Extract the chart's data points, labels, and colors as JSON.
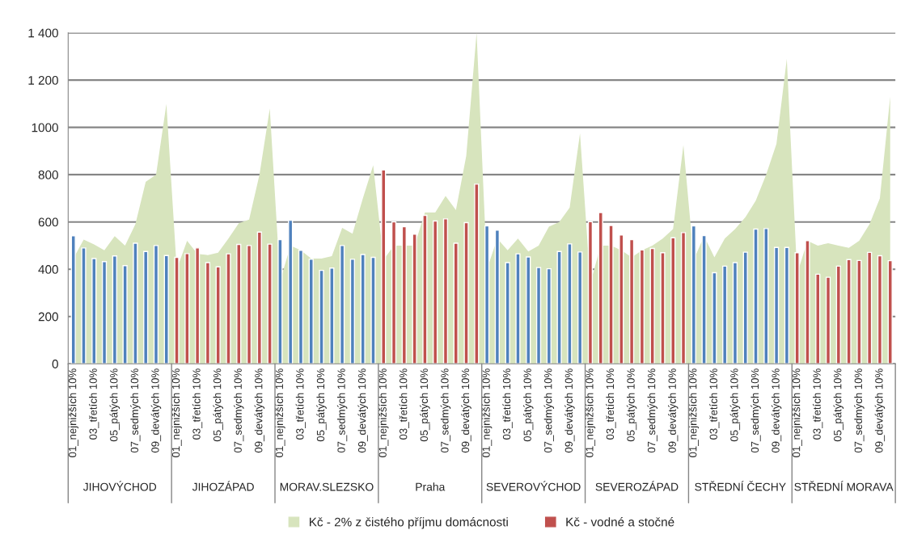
{
  "chart_data": {
    "type": "bar",
    "categories": [
      "01_nejnižších 10%",
      null,
      "03_třetích 10%",
      null,
      "05_pátých 10%",
      null,
      "07_sedmých 10%",
      null,
      "09_devátých 10%",
      null,
      "01_nejnižších 10%",
      null,
      "03_třetích 10%",
      null,
      "05_pátých 10%",
      null,
      "07_sedmých 10%",
      null,
      "09_devátých 10%",
      null,
      "01_nejnižších 10%",
      null,
      "03_třetích 10%",
      null,
      "05_pátých 10%",
      null,
      "07_sedmých 10%",
      null,
      "09_devátých 10%",
      null,
      "01_nejnižších 10%",
      null,
      "03_třetích 10%",
      null,
      "05_pátých 10%",
      null,
      "07_sedmých 10%",
      null,
      "09_devátých 10%",
      null,
      "01_nejnižších 10%",
      null,
      "03_třetích 10%",
      null,
      "05_pátých 10%",
      null,
      "07_sedmých 10%",
      null,
      "09_devátých 10%",
      null,
      "01_nejnižších 10%",
      null,
      "03_třetích 10%",
      null,
      "05_pátých 10%",
      null,
      "07_sedmých 10%",
      null,
      "09_devátých 10%",
      null,
      "01_nejnižších 10%",
      null,
      "03_třetích 10%",
      null,
      "05_pátých 10%",
      null,
      "07_sedmých 10%",
      null,
      "09_devátých 10%",
      null,
      "01_nejnižších 10%",
      null,
      "03_třetích 10%",
      null,
      "05_pátých 10%",
      null,
      "07_sedmých 10%",
      null,
      "09_devátých 10%",
      null
    ],
    "series": [
      {
        "name": "Kč - 2% z čistého příjmu domácnosti",
        "type": "area",
        "color": "#d7e4bd",
        "values": [
          445,
          525,
          505,
          480,
          540,
          500,
          590,
          770,
          800,
          1100,
          400,
          520,
          465,
          460,
          470,
          530,
          595,
          610,
          800,
          1080,
          350,
          500,
          480,
          445,
          445,
          455,
          575,
          550,
          700,
          840,
          440,
          500,
          500,
          500,
          640,
          640,
          710,
          650,
          880,
          1400,
          400,
          530,
          480,
          530,
          475,
          500,
          580,
          600,
          660,
          975,
          340,
          500,
          500,
          480,
          450,
          480,
          500,
          530,
          570,
          925,
          440,
          540,
          450,
          530,
          570,
          620,
          690,
          800,
          930,
          1290,
          380,
          520,
          500,
          510,
          500,
          490,
          520,
          590,
          700,
          1130
        ]
      },
      {
        "name": "Kč - vodné a stočné",
        "color": "#c0504d",
        "values": [
          541,
          490,
          445,
          432,
          456,
          415,
          510,
          475,
          500,
          458,
          450,
          466,
          490,
          428,
          410,
          465,
          505,
          500,
          557,
          506,
          525,
          607,
          480,
          442,
          395,
          405,
          500,
          442,
          462,
          450,
          820,
          600,
          580,
          548,
          628,
          604,
          613,
          510,
          597,
          760,
          583,
          565,
          428,
          465,
          452,
          407,
          402,
          475,
          507,
          473,
          601,
          640,
          585,
          545,
          525,
          482,
          488,
          470,
          533,
          555,
          583,
          542,
          385,
          413,
          428,
          472,
          570,
          572,
          492,
          492,
          470,
          521,
          379,
          366,
          413,
          441,
          437,
          471,
          457,
          436
        ],
        "colors": [
          "#4f81bd",
          "#4f81bd",
          "#4f81bd",
          "#4f81bd",
          "#4f81bd",
          "#4f81bd",
          "#4f81bd",
          "#4f81bd",
          "#4f81bd",
          "#4f81bd",
          "#c0504d",
          "#c0504d",
          "#c0504d",
          "#c0504d",
          "#c0504d",
          "#c0504d",
          "#c0504d",
          "#c0504d",
          "#c0504d",
          "#c0504d",
          "#4f81bd",
          "#4f81bd",
          "#4f81bd",
          "#4f81bd",
          "#4f81bd",
          "#4f81bd",
          "#4f81bd",
          "#4f81bd",
          "#4f81bd",
          "#4f81bd",
          "#c0504d",
          "#c0504d",
          "#c0504d",
          "#c0504d",
          "#c0504d",
          "#c0504d",
          "#c0504d",
          "#c0504d",
          "#c0504d",
          "#c0504d",
          "#4f81bd",
          "#4f81bd",
          "#4f81bd",
          "#4f81bd",
          "#4f81bd",
          "#4f81bd",
          "#4f81bd",
          "#4f81bd",
          "#4f81bd",
          "#4f81bd",
          "#c0504d",
          "#c0504d",
          "#c0504d",
          "#c0504d",
          "#c0504d",
          "#c0504d",
          "#c0504d",
          "#c0504d",
          "#c0504d",
          "#c0504d",
          "#4f81bd",
          "#4f81bd",
          "#4f81bd",
          "#4f81bd",
          "#4f81bd",
          "#4f81bd",
          "#4f81bd",
          "#4f81bd",
          "#4f81bd",
          "#4f81bd",
          "#c0504d",
          "#c0504d",
          "#c0504d",
          "#c0504d",
          "#c0504d",
          "#c0504d",
          "#c0504d",
          "#c0504d",
          "#c0504d",
          "#c0504d"
        ]
      }
    ],
    "annotations": [
      "JIHOVÝCHOD",
      "JIHOZÁPAD",
      "MORAV.SLEZSKO",
      "Praha",
      "SEVEROVÝCHOD",
      "SEVEROZÁPAD",
      "STŘEDNÍ ČECHY",
      "STŘEDNÍ MORAVA"
    ],
    "ylim": [
      0,
      1400
    ],
    "yticks": [
      0,
      200,
      400,
      600,
      800,
      1000,
      {
        "value": 1200,
        "label": "1 200"
      },
      {
        "value": 1400,
        "label": "1 400"
      }
    ],
    "grid": "y",
    "legend": "bottom"
  }
}
